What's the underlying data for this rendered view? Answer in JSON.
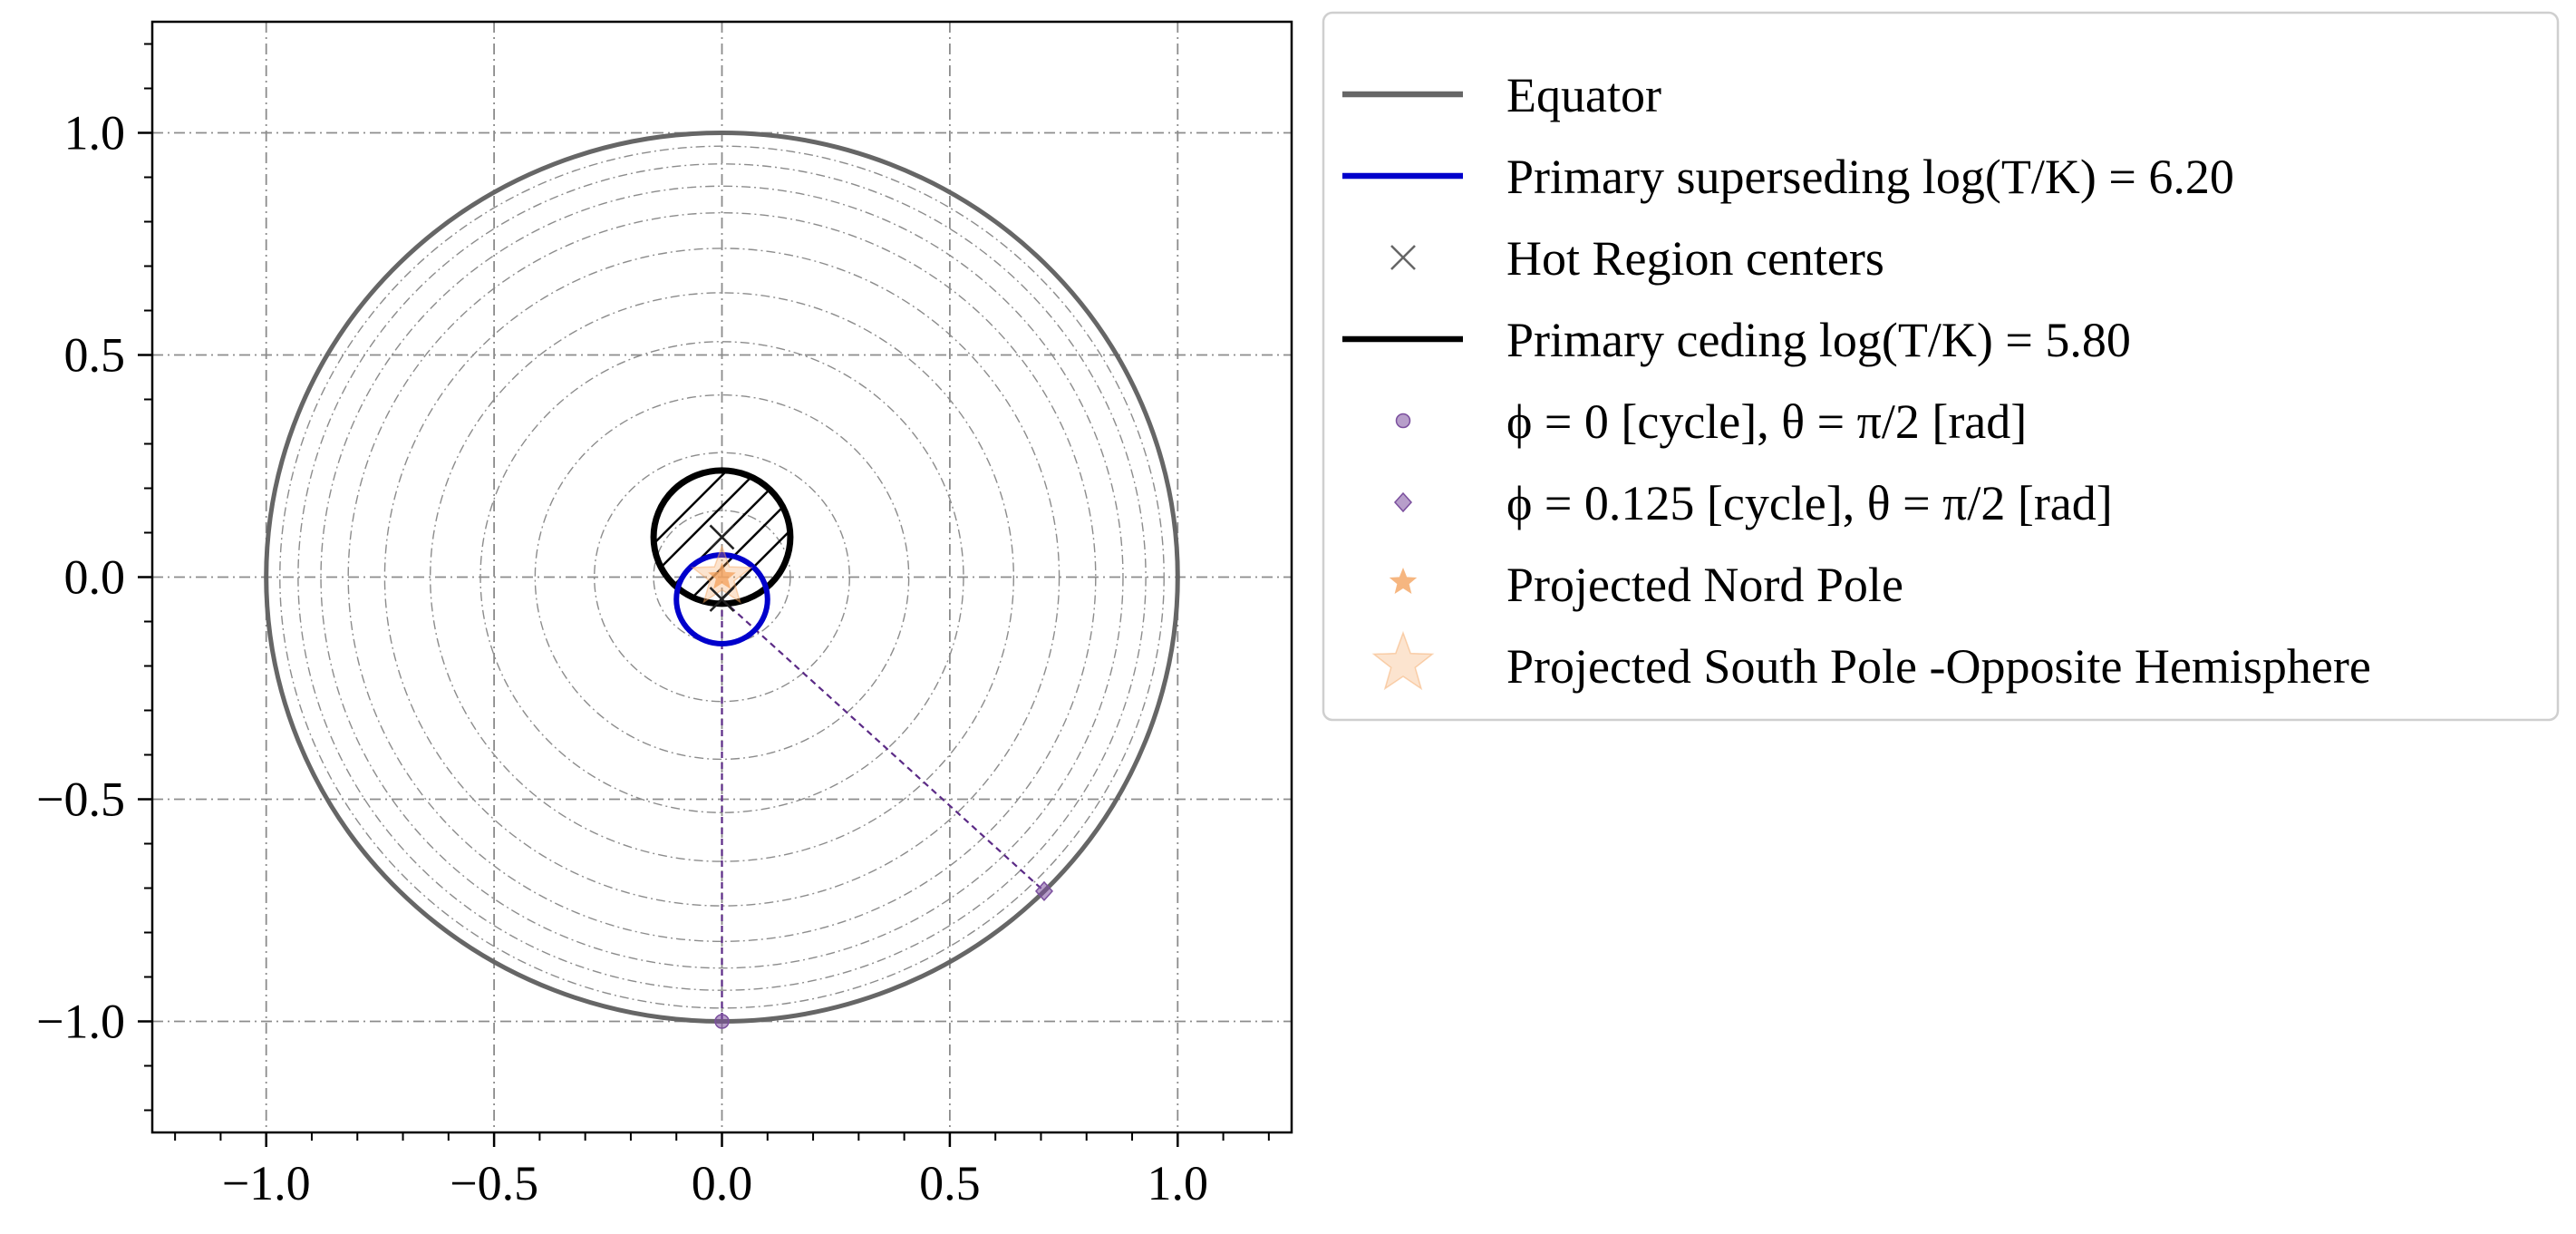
{
  "chart_data": {
    "type": "scatter",
    "title": "",
    "xlabel": "",
    "ylabel": "",
    "xlim": [
      -1.25,
      1.25
    ],
    "ylim": [
      -1.25,
      1.25
    ],
    "grid": true,
    "aspect": "equal",
    "legend_position": "outside-right",
    "x_ticks": [
      -1.0,
      -0.5,
      0.0,
      0.5,
      1.0
    ],
    "y_ticks": [
      -1.0,
      -0.5,
      0.0,
      0.5,
      1.0
    ],
    "x_tick_labels": [
      "−1.0",
      "−0.5",
      "0.0",
      "0.5",
      "1.0"
    ],
    "y_tick_labels": [
      "−1.0",
      "−0.5",
      "0.0",
      "0.5",
      "1.0"
    ],
    "latitude_circle_radii": [
      0.15,
      0.28,
      0.41,
      0.53,
      0.64,
      0.74,
      0.82,
      0.88,
      0.93,
      0.97
    ],
    "equator": {
      "center": [
        0.0,
        0.0
      ],
      "radius": 1.0,
      "color": "#666666"
    },
    "primary_superseding": {
      "center": [
        0.0,
        -0.05
      ],
      "radius": 0.1,
      "color": "#0000cc"
    },
    "primary_ceding": {
      "center": [
        0.0,
        0.09
      ],
      "radius": 0.15,
      "color": "#000000",
      "hatch": "diagonal"
    },
    "hot_region_centers": [
      [
        0.0,
        0.09
      ],
      [
        0.0,
        -0.05
      ]
    ],
    "phase_points": [
      {
        "x": 0.0,
        "y": -1.0,
        "marker": "circle",
        "color": "#7b4f9e",
        "link_from": [
          0.0,
          -0.05
        ]
      },
      {
        "x": 0.707,
        "y": -0.707,
        "marker": "diamond",
        "color": "#7b4f9e",
        "link_from": [
          0.0,
          -0.05
        ]
      }
    ],
    "projected_north_pole": {
      "x": 0.0,
      "y": 0.0,
      "color": "#f4a460"
    },
    "projected_south_pole": {
      "x": 0.0,
      "y": 0.0,
      "color": "#f4a460",
      "alpha": 0.3
    },
    "legend": [
      {
        "label": "Equator",
        "kind": "line",
        "color": "#666666"
      },
      {
        "label": "Primary superseding log(T/K) = 6.20",
        "kind": "line",
        "color": "#0000cc"
      },
      {
        "label": "Hot Region centers",
        "kind": "x-marker",
        "color": "#666666"
      },
      {
        "label": "Primary ceding log(T/K) = 5.80",
        "kind": "line",
        "color": "#000000"
      },
      {
        "label": "ϕ = 0 [cycle], θ = π/2 [rad]",
        "kind": "circle-marker",
        "color": "#7b4f9e"
      },
      {
        "label": "ϕ = 0.125 [cycle], θ = π/2 [rad]",
        "kind": "diamond-marker",
        "color": "#7b4f9e"
      },
      {
        "label": "Projected Nord Pole",
        "kind": "small-star",
        "color": "#f4a460"
      },
      {
        "label": "Projected South Pole  -Opposite Hemisphere",
        "kind": "big-star",
        "color": "#f4a460"
      }
    ]
  }
}
